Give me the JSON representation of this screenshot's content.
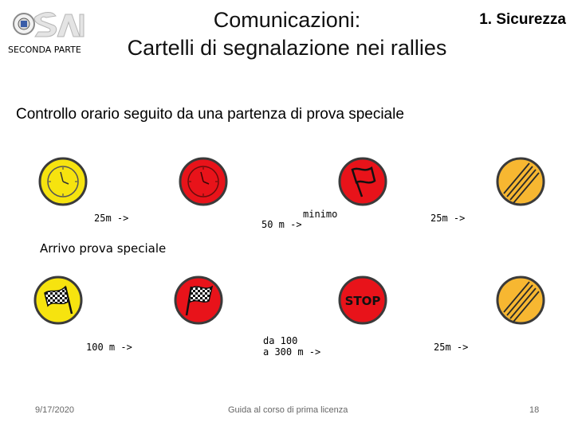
{
  "header": {
    "section": "SECONDA PARTE",
    "title_line1": "Comunicazioni:",
    "title_line2": "Cartelli di segnalazione nei rallies",
    "topic": "1. Sicurezza"
  },
  "subtitle": "Controllo orario seguito da una partenza di prova speciale",
  "row1": {
    "signs": [
      {
        "icon": "yellow-clock-sign-icon"
      },
      {
        "icon": "red-clock-sign-icon"
      },
      {
        "icon": "red-flag-sign-icon"
      },
      {
        "icon": "end-zone-sign-icon"
      }
    ],
    "distances": [
      "25m ->",
      "50 m ->",
      "minimo",
      "25m ->"
    ]
  },
  "section_label": "Arrivo prova speciale",
  "row2": {
    "signs": [
      {
        "icon": "yellow-checkered-flag-sign-icon"
      },
      {
        "icon": "red-checkered-flag-sign-icon"
      },
      {
        "icon": "stop-sign-icon",
        "text": "STOP"
      },
      {
        "icon": "end-zone-sign-icon"
      }
    ],
    "distances": [
      "100 m ->",
      "da 100",
      "a 300 m ->",
      "25m ->"
    ]
  },
  "footer": {
    "date": "9/17/2020",
    "center": "Guida al corso di prima licenza",
    "page": "18"
  },
  "colors": {
    "yellow": "#f6e30f",
    "red": "#e8131a",
    "orange": "#f7b731",
    "border": "#3a3a3a"
  }
}
